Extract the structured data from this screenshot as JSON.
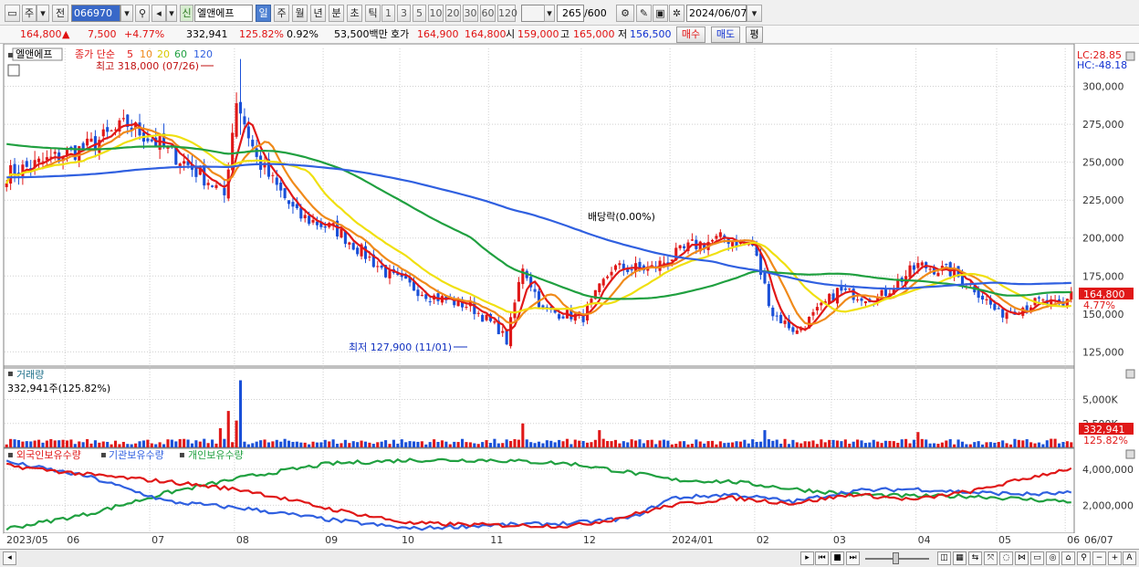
{
  "toolbar": {
    "type_label": "주",
    "prev_label": "전",
    "code": "066970",
    "new_label": "신",
    "stock_name": "엘앤에프",
    "periods": [
      "일",
      "주",
      "월",
      "년",
      "분",
      "초",
      "틱"
    ],
    "selected_period": "일",
    "intervals": [
      "1",
      "3",
      "5",
      "10",
      "20",
      "30",
      "60",
      "120"
    ],
    "count": "265",
    "count_total": "/600",
    "date": "2024/06/07"
  },
  "quote": {
    "price": "164,800",
    "arrow": "▲",
    "change": "7,500",
    "change_pct": "+4.77%",
    "volume": "332,941",
    "volume_ratio": "125.82%",
    "turnover": "0.92%",
    "amount": "53,500백만",
    "ask_label": "호가",
    "ask": "164,900",
    "bid": "164,800",
    "open_label": "시",
    "open": "159,000",
    "high_label": "고",
    "high": "165,000",
    "low_label": "저",
    "low": "156,500",
    "buy_label": "매수",
    "sell_label": "매도",
    "eval_label": "평"
  },
  "price_panel": {
    "name_tag": "엘앤에프",
    "ma_label": "종가 단순",
    "ma_periods": [
      "5",
      "10",
      "20",
      "60",
      "120"
    ],
    "high_annot": "최고 318,000 (07/26)",
    "low_annot": "최저 127,900 (11/01)",
    "div_annot": "배당락(0.00%)",
    "lc": "LC:28.85",
    "hc": "HC:-48.18",
    "last_price": "164,800",
    "last_pct": "4.77%"
  },
  "volume_panel": {
    "title": "거래량",
    "value": "332,941주(125.82%)",
    "last": "332,941",
    "last_pct": "125.82%"
  },
  "holdings_panel": {
    "labels": [
      "외국인보유수량",
      "기관보유수량",
      "개인보유수량"
    ]
  },
  "colors": {
    "up": "#e01818",
    "down": "#1a50d8",
    "ma5": "#e01818",
    "ma10": "#f08a1a",
    "ma20": "#f0e010",
    "ma60": "#20a040",
    "ma120": "#3060e0",
    "foreign": "#e01818",
    "inst": "#3060e0",
    "indiv": "#20a040"
  },
  "chart_data": {
    "type": "candlestick",
    "price_ticks": [
      300000,
      275000,
      250000,
      225000,
      200000,
      175000,
      150000,
      125000
    ],
    "price_tick_labels": [
      "300,000",
      "275,000",
      "250,000",
      "225,000",
      "200,000",
      "175,000",
      "150,000",
      "125,000"
    ],
    "price_range": [
      115000,
      325000
    ],
    "volume_ticks": [
      "5,000K",
      "2,500K"
    ],
    "volume_tick_values": [
      5000000,
      2500000
    ],
    "volume_range": [
      0,
      8000000
    ],
    "holdings_ticks": [
      "4,000,000",
      "2,000,000"
    ],
    "holdings_tick_values": [
      4000000,
      2000000
    ],
    "holdings_range": [
      500000,
      5000000
    ],
    "x_labels": [
      "2023/05",
      "06",
      "07",
      "08",
      "09",
      "10",
      "11",
      "12",
      "2024/01",
      "02",
      "03",
      "04",
      "05",
      "06",
      "06/07"
    ],
    "close_anchors": [
      [
        0,
        242000
      ],
      [
        20,
        260000
      ],
      [
        30,
        275000
      ],
      [
        40,
        258000
      ],
      [
        50,
        238000
      ],
      [
        54,
        228000
      ],
      [
        57,
        292000
      ],
      [
        62,
        252000
      ],
      [
        72,
        215000
      ],
      [
        82,
        205000
      ],
      [
        95,
        175000
      ],
      [
        105,
        162000
      ],
      [
        115,
        155000
      ],
      [
        122,
        140000
      ],
      [
        124,
        132000
      ],
      [
        128,
        182000
      ],
      [
        133,
        152000
      ],
      [
        143,
        148000
      ],
      [
        150,
        180000
      ],
      [
        160,
        180000
      ],
      [
        170,
        195000
      ],
      [
        178,
        200000
      ],
      [
        185,
        195000
      ],
      [
        190,
        150000
      ],
      [
        196,
        138000
      ],
      [
        206,
        165000
      ],
      [
        216,
        160000
      ],
      [
        226,
        182000
      ],
      [
        234,
        178000
      ],
      [
        240,
        167000
      ],
      [
        246,
        150000
      ],
      [
        256,
        158000
      ],
      [
        262,
        154000
      ],
      [
        264,
        164800
      ]
    ],
    "volume_spikes": [
      [
        53,
        2000000
      ],
      [
        55,
        3800000
      ],
      [
        57,
        2800000
      ],
      [
        58,
        7000000
      ],
      [
        128,
        2500000
      ],
      [
        147,
        1800000
      ],
      [
        188,
        1800000
      ],
      [
        226,
        1600000
      ]
    ],
    "foreign_anchors": [
      [
        0,
        4200000
      ],
      [
        20,
        3700000
      ],
      [
        40,
        3300000
      ],
      [
        60,
        2800000
      ],
      [
        80,
        1800000
      ],
      [
        100,
        1000000
      ],
      [
        120,
        900000
      ],
      [
        140,
        850000
      ],
      [
        150,
        1200000
      ],
      [
        165,
        2000000
      ],
      [
        180,
        2400000
      ],
      [
        195,
        2100000
      ],
      [
        210,
        2600000
      ],
      [
        225,
        2300000
      ],
      [
        240,
        2800000
      ],
      [
        255,
        3600000
      ],
      [
        265,
        4100000
      ]
    ],
    "inst_anchors": [
      [
        0,
        4400000
      ],
      [
        20,
        3600000
      ],
      [
        40,
        2200000
      ],
      [
        60,
        1800000
      ],
      [
        80,
        1200000
      ],
      [
        100,
        700000
      ],
      [
        120,
        900000
      ],
      [
        140,
        1000000
      ],
      [
        155,
        1300000
      ],
      [
        165,
        2400000
      ],
      [
        180,
        2600000
      ],
      [
        195,
        2200000
      ],
      [
        210,
        2800000
      ],
      [
        225,
        2900000
      ],
      [
        240,
        2700000
      ],
      [
        255,
        2600000
      ],
      [
        265,
        2700000
      ]
    ],
    "indiv_anchors": [
      [
        0,
        700000
      ],
      [
        20,
        1500000
      ],
      [
        40,
        2700000
      ],
      [
        60,
        3600000
      ],
      [
        80,
        4300000
      ],
      [
        100,
        4500000
      ],
      [
        120,
        4500000
      ],
      [
        140,
        4300000
      ],
      [
        155,
        3800000
      ],
      [
        165,
        3400000
      ],
      [
        180,
        3300000
      ],
      [
        195,
        2900000
      ],
      [
        210,
        2600000
      ],
      [
        225,
        2500000
      ],
      [
        240,
        2500000
      ],
      [
        255,
        2300000
      ],
      [
        265,
        2200000
      ]
    ]
  }
}
